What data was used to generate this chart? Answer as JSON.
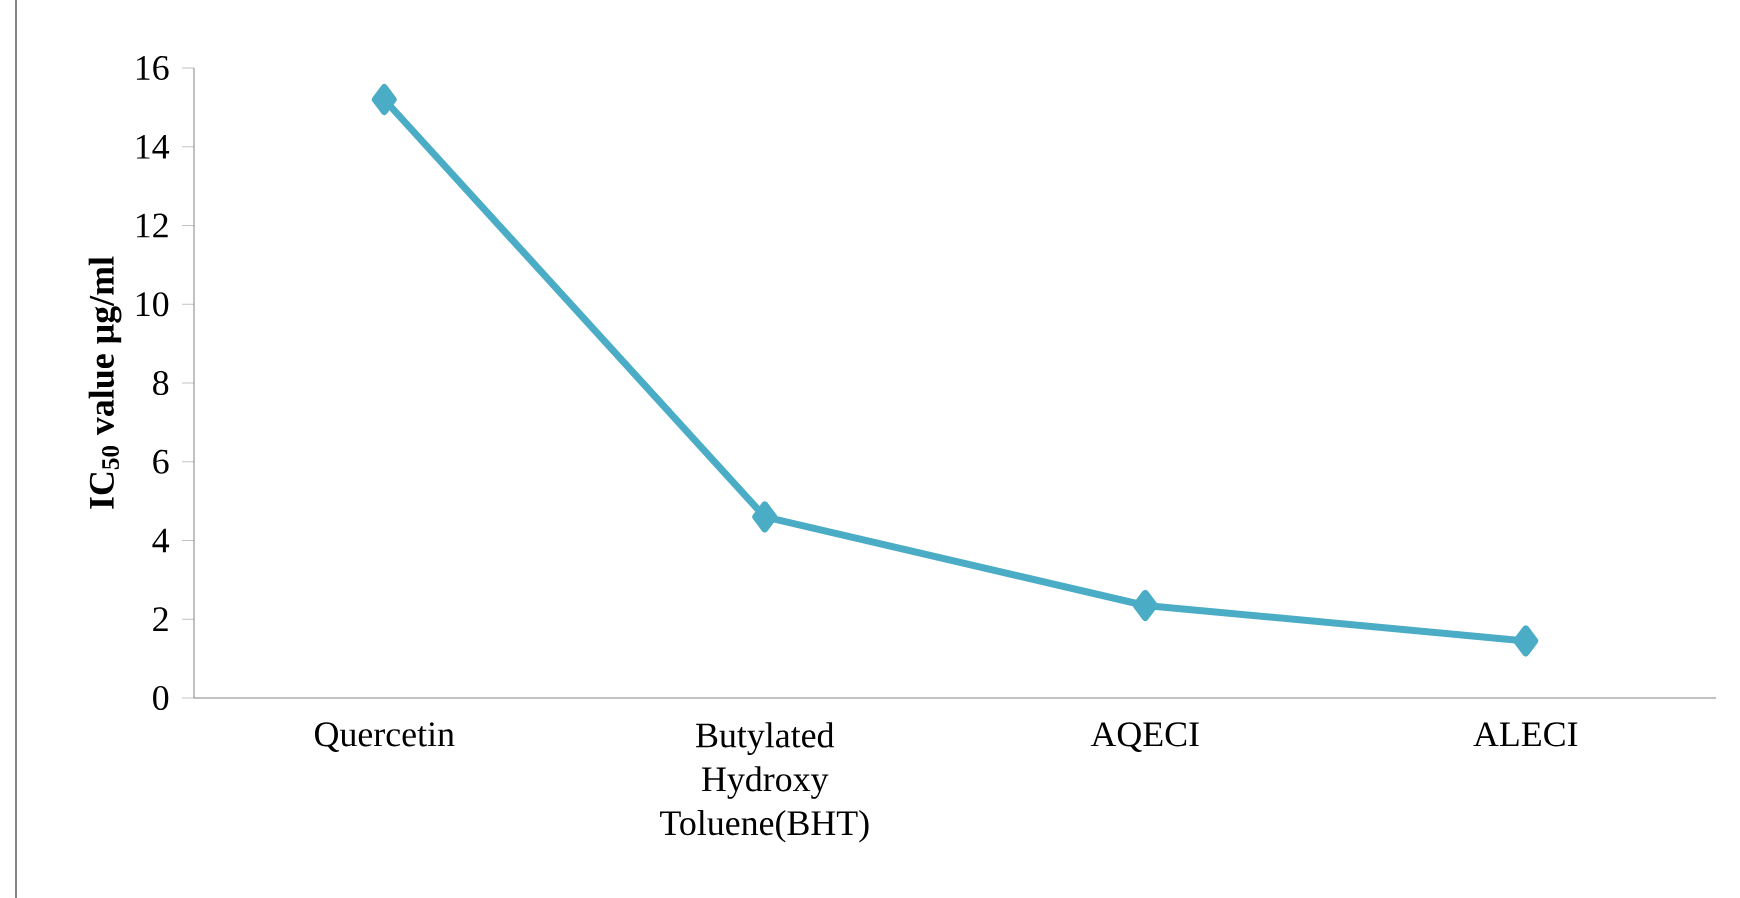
{
  "chart_data": {
    "type": "line",
    "ylabel": "IC$_{50}$ value µg/ml",
    "categories": [
      "Quercetin",
      "Butylated Hydroxy Toluene(BHT)",
      "AQECI",
      "ALECI"
    ],
    "values": [
      15.2,
      4.6,
      2.35,
      1.45
    ],
    "color": "#4bacc6",
    "marker": "diamond",
    "ylim": [
      0,
      16
    ],
    "yticks": [
      0,
      2,
      4,
      6,
      8,
      10,
      12,
      14,
      16
    ]
  }
}
